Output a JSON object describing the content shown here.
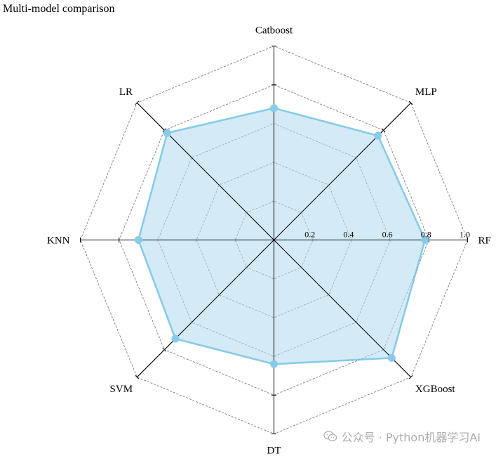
{
  "watermark": {
    "text": "公众号 · Python机器学习AI",
    "icon": "wechat-icon"
  },
  "chart_data": {
    "type": "radar",
    "title": "Multi-model comparison",
    "categories": [
      "RF",
      "XGBoost",
      "DT",
      "SVM",
      "KNN",
      "LR",
      "Catboost",
      "MLP"
    ],
    "series": [
      {
        "values": [
          0.78,
          0.86,
          0.64,
          0.72,
          0.7,
          0.78,
          0.68,
          0.76
        ],
        "color": "#87cbe8",
        "fill": "#cfe9f6"
      }
    ],
    "rlim": [
      0,
      1.0
    ],
    "rticks": [
      0.2,
      0.4,
      0.6,
      0.8,
      1.0
    ],
    "rtick_labels": [
      "0.2",
      "0.4",
      "0.6",
      "0.8",
      "1.0"
    ],
    "grid": true,
    "grid_color": "#7f7f7f",
    "axis_color": "#000000"
  }
}
